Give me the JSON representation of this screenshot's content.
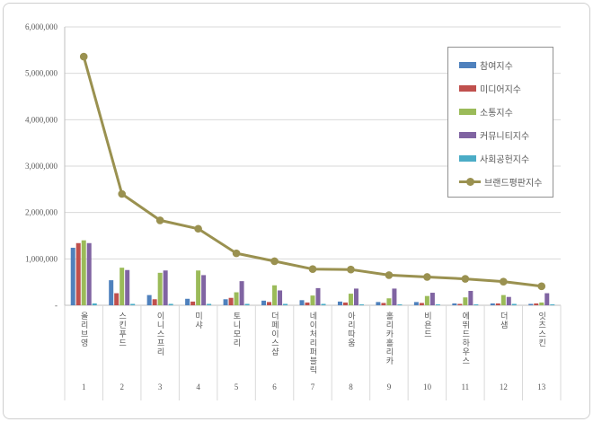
{
  "frame": {
    "background": "#ffffff",
    "border_color": "#cfcfcf"
  },
  "chart_data": {
    "type": "bar",
    "subtype": "grouped-bars-with-line-overlay",
    "title": "",
    "xlabel": "",
    "ylabel": "",
    "grid": true,
    "legend_position": "upper-right",
    "ylim": [
      0,
      6000000
    ],
    "categories": [
      "올리브영",
      "스킨푸드",
      "이니스프리",
      "미샤",
      "토니모리",
      "더페이스샵",
      "네이처리퍼블릭",
      "아리따움",
      "홀리카홀리카",
      "비욘드",
      "에뛰드하우스",
      "더샘",
      "잇츠스킨"
    ],
    "ranks": [
      "1",
      "2",
      "3",
      "4",
      "5",
      "6",
      "7",
      "8",
      "9",
      "10",
      "11",
      "12",
      "13"
    ],
    "yticks": [
      {
        "value": 0,
        "label": "-"
      },
      {
        "value": 1000000,
        "label": "1,000,000"
      },
      {
        "value": 2000000,
        "label": "2,000,000"
      },
      {
        "value": 3000000,
        "label": "3,000,000"
      },
      {
        "value": 4000000,
        "label": "4,000,000"
      },
      {
        "value": 5000000,
        "label": "5,000,000"
      },
      {
        "value": 6000000,
        "label": "6,000,000"
      }
    ],
    "series": [
      {
        "name": "참여지수",
        "type": "bar",
        "color": "#4F81BD",
        "values": [
          1240000,
          540000,
          220000,
          140000,
          130000,
          100000,
          110000,
          80000,
          70000,
          70000,
          40000,
          40000,
          30000
        ]
      },
      {
        "name": "미디어지수",
        "type": "bar",
        "color": "#C0504D",
        "values": [
          1340000,
          260000,
          130000,
          80000,
          160000,
          70000,
          60000,
          60000,
          50000,
          50000,
          30000,
          40000,
          40000
        ]
      },
      {
        "name": "소통지수",
        "type": "bar",
        "color": "#9BBB59",
        "values": [
          1400000,
          810000,
          700000,
          750000,
          280000,
          430000,
          210000,
          250000,
          150000,
          200000,
          170000,
          220000,
          60000
        ]
      },
      {
        "name": "커뮤니티지수",
        "type": "bar",
        "color": "#8064A2",
        "values": [
          1340000,
          760000,
          750000,
          650000,
          520000,
          320000,
          370000,
          360000,
          360000,
          270000,
          310000,
          180000,
          260000
        ]
      },
      {
        "name": "사회공헌지수",
        "type": "bar",
        "color": "#4BACC6",
        "values": [
          40000,
          30000,
          30000,
          30000,
          30000,
          30000,
          30000,
          20000,
          20000,
          20000,
          20000,
          30000,
          20000
        ]
      },
      {
        "name": "브랜드평판지수",
        "type": "line",
        "color": "#9A9150",
        "values": [
          5360000,
          2400000,
          1830000,
          1650000,
          1120000,
          950000,
          780000,
          770000,
          650000,
          610000,
          570000,
          510000,
          410000
        ]
      }
    ],
    "colors": {
      "gridline": "#d9d9d9",
      "axis_line": "#bfbfbf",
      "tick_text": "#595959",
      "legend_border": "#919191",
      "separator": "#d9d9d9"
    }
  }
}
